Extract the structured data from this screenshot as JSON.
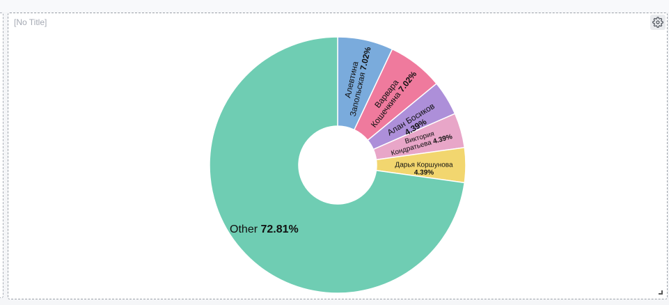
{
  "widget": {
    "title": "[No Title]",
    "settings_icon": "gear-icon",
    "resize_icon": "resize-corner-icon"
  },
  "chart_data": {
    "type": "pie",
    "donut": true,
    "slices": [
      {
        "label": "Алевтина Запольская",
        "label_lines": [
          "Алевтина",
          "Запольская"
        ],
        "value": 7.02,
        "value_label": "7.02%",
        "color": "#7aabdc"
      },
      {
        "label": "Варвара Кошечкина",
        "label_lines": [
          "Варвара",
          "Кошечкина"
        ],
        "value": 7.02,
        "value_label": "7.02%",
        "color": "#ef7a9d"
      },
      {
        "label": "Алан Босиков",
        "label_lines": [
          "Алан Босиков"
        ],
        "value": 4.39,
        "value_label": "4.39%",
        "color": "#ad8fd9"
      },
      {
        "label": "Виктория Кондратьева",
        "label_lines": [
          "Виктория",
          "Кондратьева"
        ],
        "value": 4.39,
        "value_label": "4.39%",
        "color": "#e8a6c8"
      },
      {
        "label": "Дарья Коршунова",
        "label_lines": [
          "Дарья Коршунова"
        ],
        "value": 4.39,
        "value_label": "4.39%",
        "color": "#f2d66f"
      },
      {
        "label": "Other",
        "label_lines": [
          "Other"
        ],
        "value": 72.81,
        "value_label": "72.81%",
        "color": "#6fcdb3"
      }
    ]
  }
}
